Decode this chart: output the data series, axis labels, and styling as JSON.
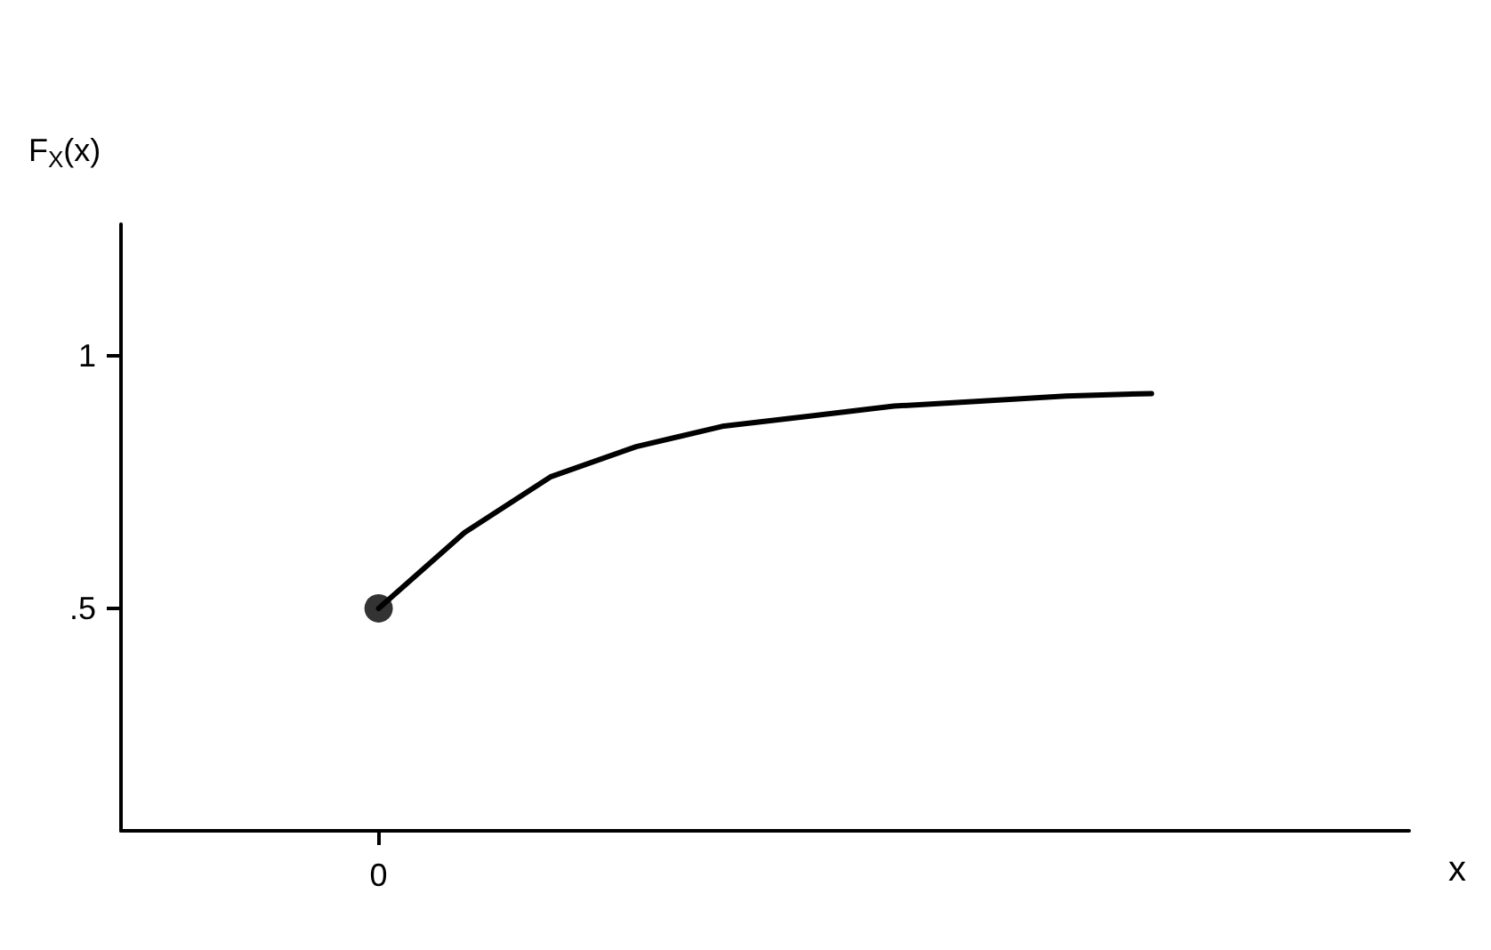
{
  "chart_data": {
    "type": "line",
    "ylabel": "F$_{X}$(x)",
    "xlabel": "x",
    "categories": [
      null,
      null,
      null,
      "0",
      null,
      null,
      null,
      null,
      null,
      null,
      null,
      null,
      null,
      null,
      null,
      null
    ],
    "series": [
      {
        "color": "#000000",
        "marker": "none",
        "values": [
          null,
          null,
          null,
          0.5,
          0.65,
          0.76,
          0.82,
          0.86,
          0.88,
          0.9,
          0.91,
          0.92,
          0.925,
          null,
          null,
          null
        ]
      },
      {
        "type": "scatter",
        "color": "#000000",
        "marker": "circle",
        "values": [
          null,
          null,
          null,
          0.5,
          null,
          null,
          null,
          null,
          null,
          null,
          null,
          null,
          null,
          null,
          null,
          null
        ]
      }
    ],
    "ylim": [
      0.06,
      1.26
    ],
    "yticks": [
      {
        "value": 0.5,
        "label": ".5"
      },
      1
    ],
    "grid": false
  }
}
